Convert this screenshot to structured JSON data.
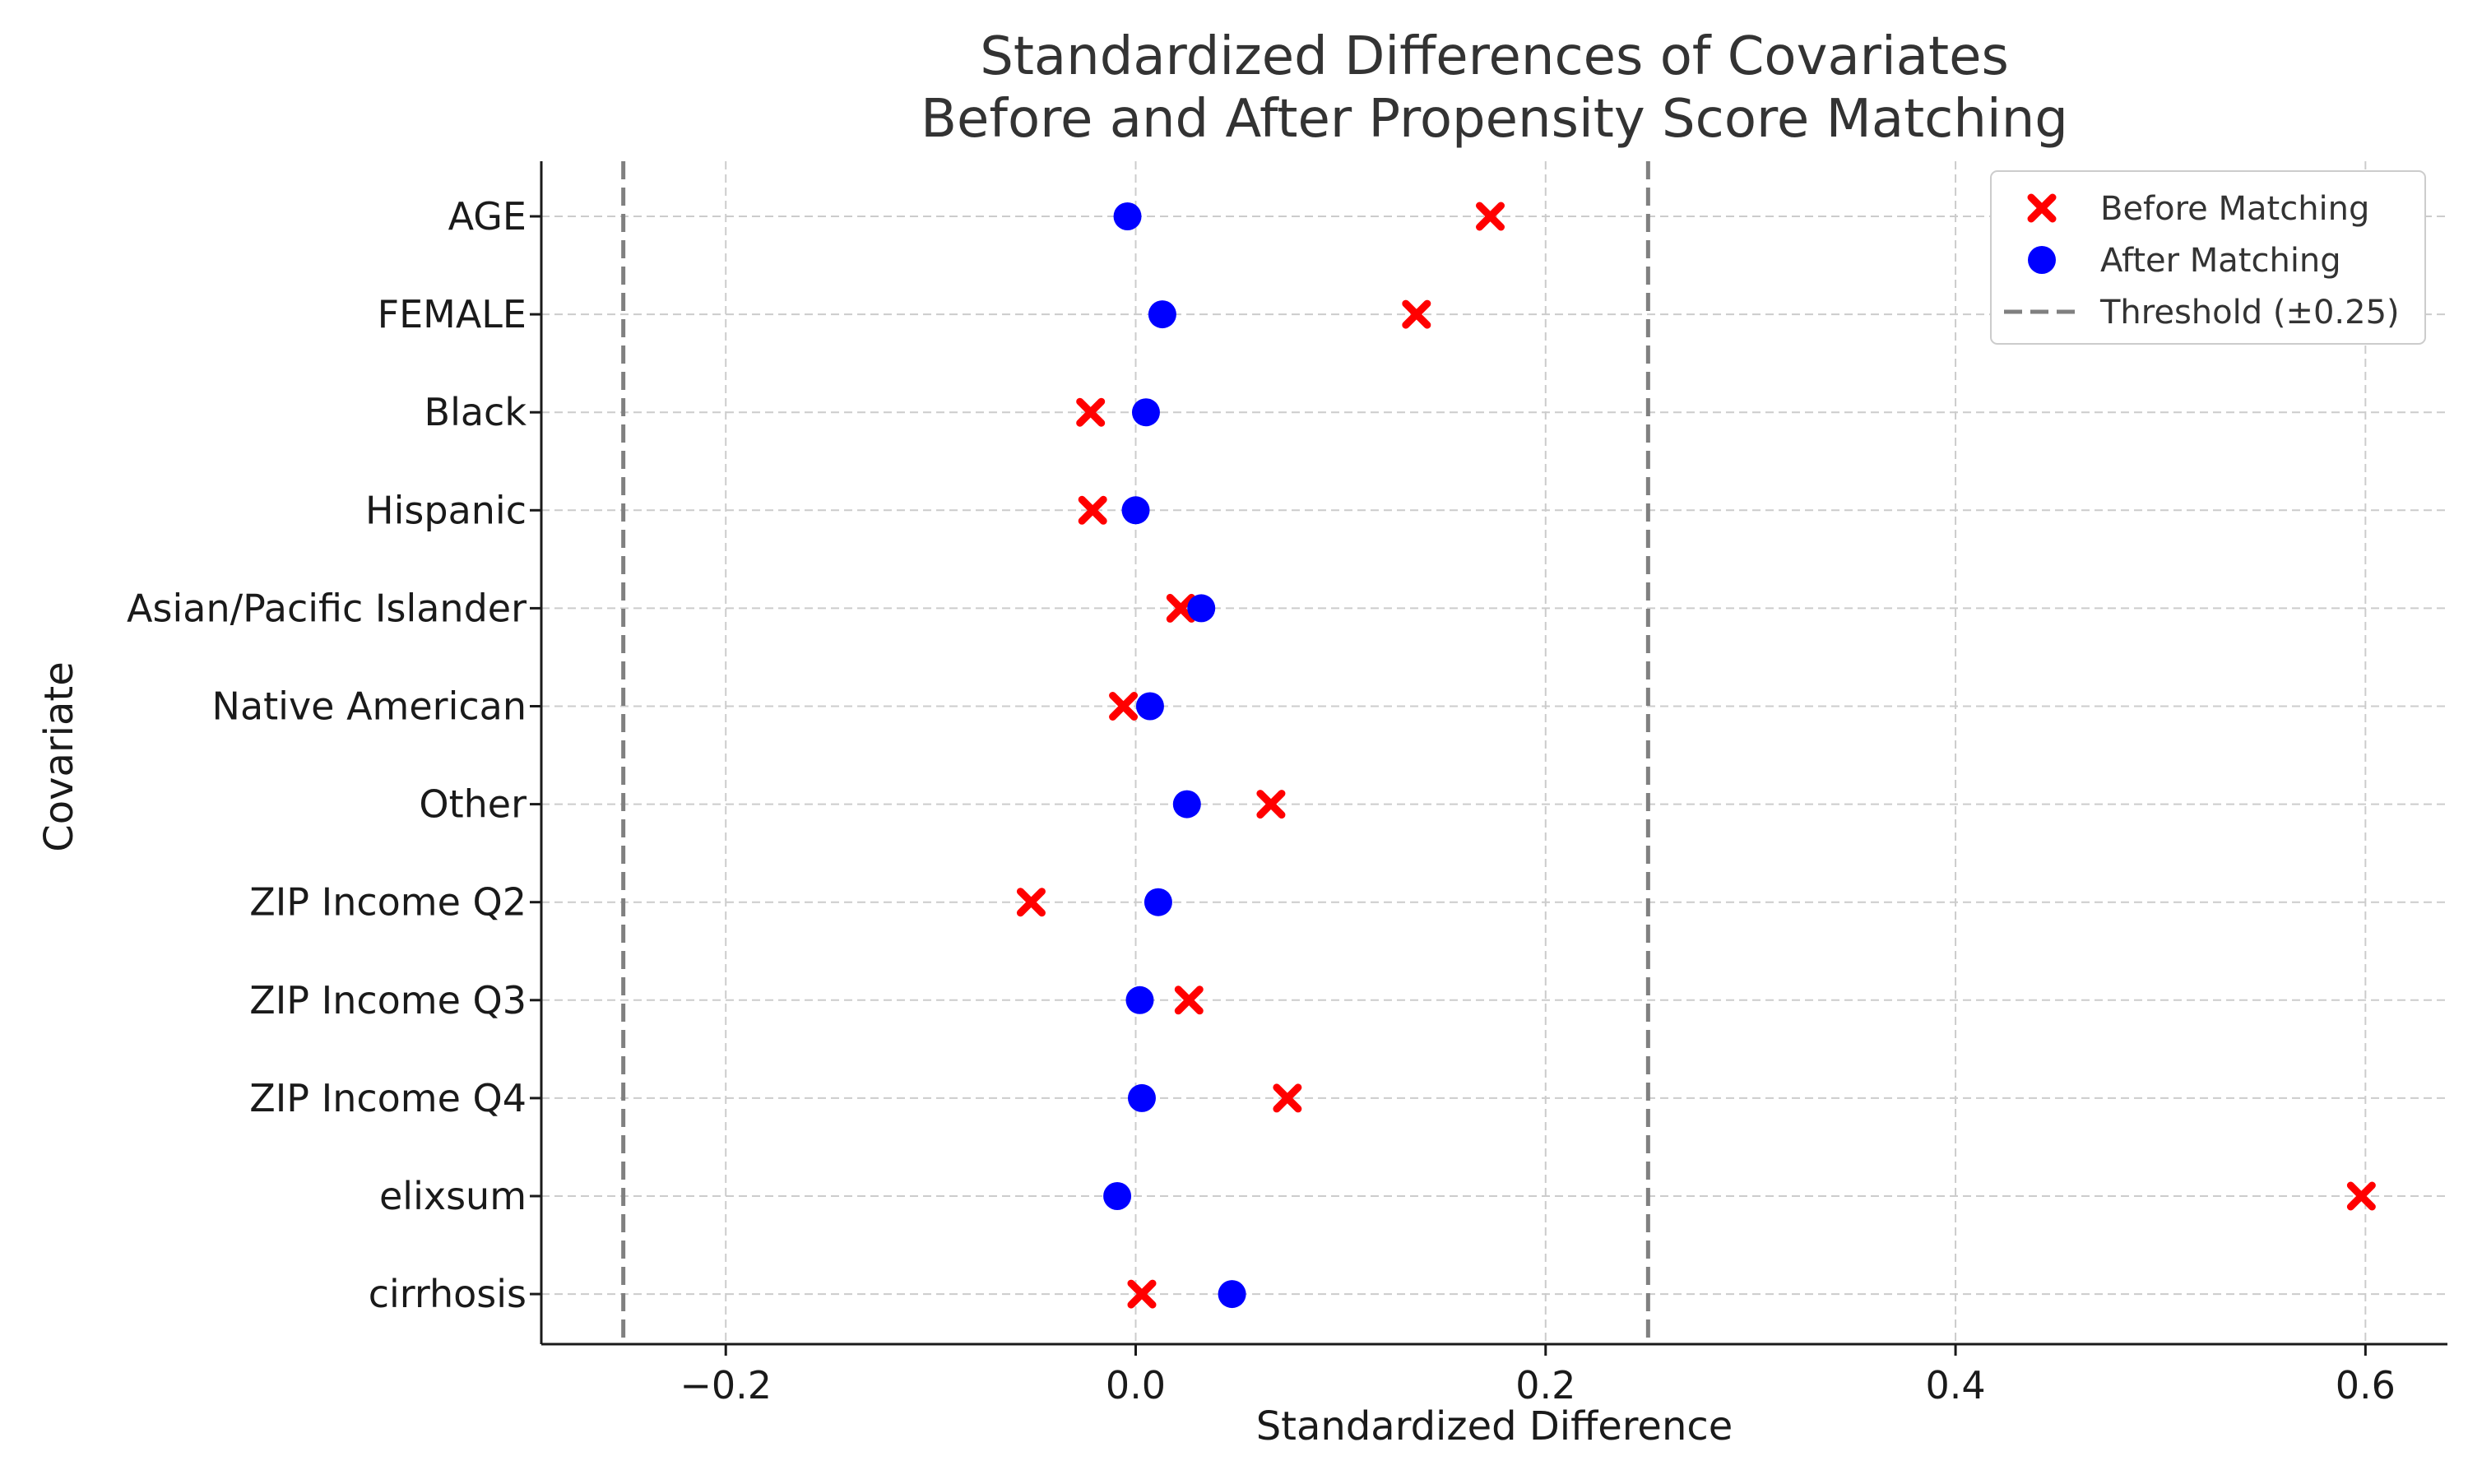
{
  "chart_data": {
    "type": "scatter",
    "title_lines": [
      "Standardized Differences of Covariates",
      "Before and After Propensity Score Matching"
    ],
    "xlabel": "Standardized Difference",
    "ylabel": "Covariate",
    "xlim": [
      -0.29,
      0.64
    ],
    "xticks": [
      -0.2,
      0.0,
      0.2,
      0.4,
      0.6
    ],
    "xtick_labels": [
      "−0.2",
      "0.0",
      "0.2",
      "0.4",
      "0.6"
    ],
    "categories": [
      "AGE",
      "FEMALE",
      "Black",
      "Hispanic",
      "Asian/Pacific Islander",
      "Native American",
      "Other",
      "ZIP Income Q2",
      "ZIP Income Q3",
      "ZIP Income Q4",
      "elixsum",
      "cirrhosis"
    ],
    "series": [
      {
        "name": "Before Matching",
        "marker": "x",
        "color": "#ff0000",
        "values": [
          0.173,
          0.137,
          -0.022,
          -0.021,
          0.022,
          -0.006,
          0.066,
          -0.051,
          0.026,
          0.074,
          0.598,
          0.003
        ]
      },
      {
        "name": "After Matching",
        "marker": "circle",
        "color": "#0000ff",
        "values": [
          -0.004,
          0.013,
          0.005,
          0.0,
          0.032,
          0.007,
          0.025,
          0.011,
          0.002,
          0.003,
          -0.009,
          0.047
        ]
      }
    ],
    "threshold": {
      "name": "Threshold (±0.25)",
      "values": [
        -0.25,
        0.25
      ],
      "color": "#808080"
    },
    "grid": true,
    "legend_position": "top-right"
  }
}
